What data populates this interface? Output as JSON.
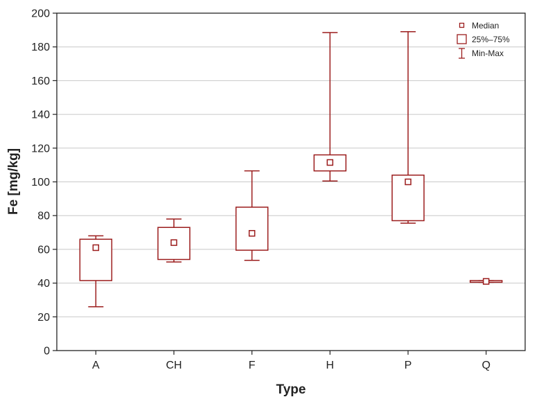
{
  "chart_data": {
    "type": "boxplot",
    "title": "",
    "xlabel": "Type",
    "ylabel": "Fe [mg/kg]",
    "ylim": [
      0,
      200
    ],
    "yticks": [
      "0",
      "20",
      "40",
      "60",
      "80",
      "100",
      "120",
      "140",
      "160",
      "180",
      "200"
    ],
    "grid": "horizontal",
    "legend_position": "top-right",
    "color": "#9b1c1c",
    "legend": {
      "median": "Median",
      "iqr": "25%–75%",
      "range": "Min-Max"
    },
    "categories": [
      "A",
      "CH",
      "F",
      "H",
      "P",
      "Q"
    ],
    "boxes": [
      {
        "category": "A",
        "min": 26,
        "q1": 41.5,
        "median": 61,
        "q3": 66,
        "max": 68
      },
      {
        "category": "CH",
        "min": 52.5,
        "q1": 54,
        "median": 64,
        "q3": 73,
        "max": 78
      },
      {
        "category": "F",
        "min": 53.5,
        "q1": 59.5,
        "median": 69.5,
        "q3": 85,
        "max": 106.5
      },
      {
        "category": "H",
        "min": 100.5,
        "q1": 106.5,
        "median": 111.5,
        "q3": 116,
        "max": 188.5
      },
      {
        "category": "P",
        "min": 75.5,
        "q1": 77,
        "median": 100,
        "q3": 104,
        "max": 189
      },
      {
        "category": "Q",
        "min": 40.5,
        "q1": 40.5,
        "median": 41,
        "q3": 41.5,
        "max": 41.5
      }
    ]
  }
}
